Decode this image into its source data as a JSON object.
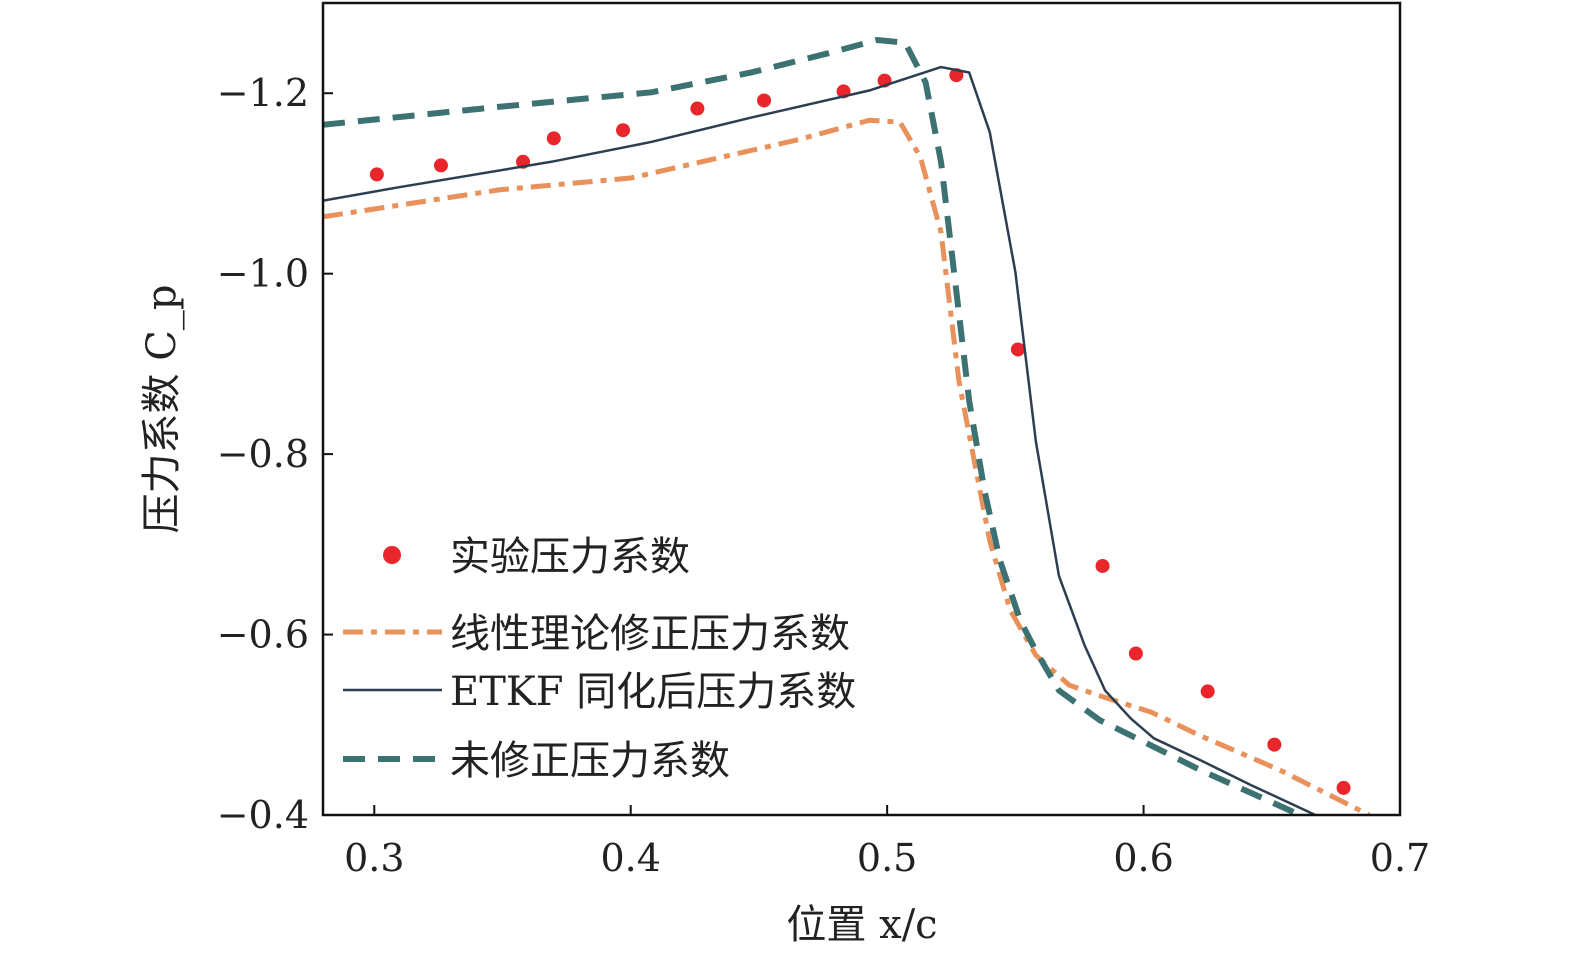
{
  "chart_data": {
    "type": "line",
    "title": "",
    "xlabel": "位置 x/c",
    "ylabel": "压力系数 C_p",
    "xlim": [
      0.28,
      0.7
    ],
    "ylim": [
      -0.4,
      -1.3
    ],
    "y_inverted": true,
    "grid": false,
    "legend_placement": "lower-left",
    "x_ticks": [
      "0.3",
      "0.4",
      "0.5",
      "0.6",
      "0.7"
    ],
    "x_tick_values": [
      0.3,
      0.4,
      0.5,
      0.6,
      0.7
    ],
    "y_ticks": [
      "−1.2",
      "−1.0",
      "−0.8",
      "−0.6",
      "−0.4"
    ],
    "y_tick_values": [
      -1.2,
      -1.0,
      -0.8,
      -0.6,
      -0.4
    ],
    "series": [
      {
        "name": "实验压力系数",
        "kind": "scatter",
        "color": "#e8262b",
        "x": [
          0.301,
          0.326,
          0.358,
          0.37,
          0.397,
          0.426,
          0.452,
          0.483,
          0.499,
          0.527,
          0.551,
          0.584,
          0.597,
          0.625,
          0.651,
          0.678
        ],
        "y": [
          -1.11,
          -1.12,
          -1.124,
          -1.15,
          -1.159,
          -1.183,
          -1.192,
          -1.202,
          -1.214,
          -1.22,
          -0.916,
          -0.676,
          -0.579,
          -0.537,
          -0.478,
          -0.43
        ]
      },
      {
        "name": "线性理论修正压力系数",
        "kind": "dashdot",
        "color": "#e8915a",
        "x": [
          0.28,
          0.349,
          0.4,
          0.466,
          0.493,
          0.505,
          0.513,
          0.521,
          0.528,
          0.534,
          0.54,
          0.548,
          0.558,
          0.571,
          0.583,
          0.603,
          0.622,
          0.653,
          0.688
        ],
        "y": [
          -1.063,
          -1.093,
          -1.106,
          -1.149,
          -1.17,
          -1.168,
          -1.129,
          -1.046,
          -0.881,
          -0.792,
          -0.704,
          -0.627,
          -0.577,
          -0.544,
          -0.532,
          -0.514,
          -0.488,
          -0.45,
          -0.4
        ]
      },
      {
        "name": "ETKF 同化后压力系数",
        "kind": "solid",
        "color": "#2c3e50",
        "x": [
          0.28,
          0.31,
          0.369,
          0.408,
          0.447,
          0.493,
          0.521,
          0.532,
          0.54,
          0.55,
          0.558,
          0.567,
          0.577,
          0.585,
          0.595,
          0.604,
          0.622,
          0.642,
          0.667
        ],
        "y": [
          -1.081,
          -1.096,
          -1.124,
          -1.146,
          -1.173,
          -1.203,
          -1.229,
          -1.223,
          -1.157,
          -1.002,
          -0.814,
          -0.665,
          -0.588,
          -0.538,
          -0.507,
          -0.485,
          -0.461,
          -0.433,
          -0.4
        ]
      },
      {
        "name": "未修正压力系数",
        "kind": "dashed",
        "color": "#3d7272",
        "x": [
          0.28,
          0.349,
          0.408,
          0.447,
          0.478,
          0.496,
          0.507,
          0.515,
          0.521,
          0.527,
          0.532,
          0.538,
          0.544,
          0.552,
          0.558,
          0.567,
          0.583,
          0.603,
          0.622,
          0.661
        ],
        "y": [
          -1.165,
          -1.185,
          -1.201,
          -1.223,
          -1.245,
          -1.259,
          -1.256,
          -1.212,
          -1.124,
          -0.98,
          -0.859,
          -0.759,
          -0.682,
          -0.615,
          -0.582,
          -0.538,
          -0.505,
          -0.477,
          -0.45,
          -0.4
        ]
      }
    ]
  }
}
